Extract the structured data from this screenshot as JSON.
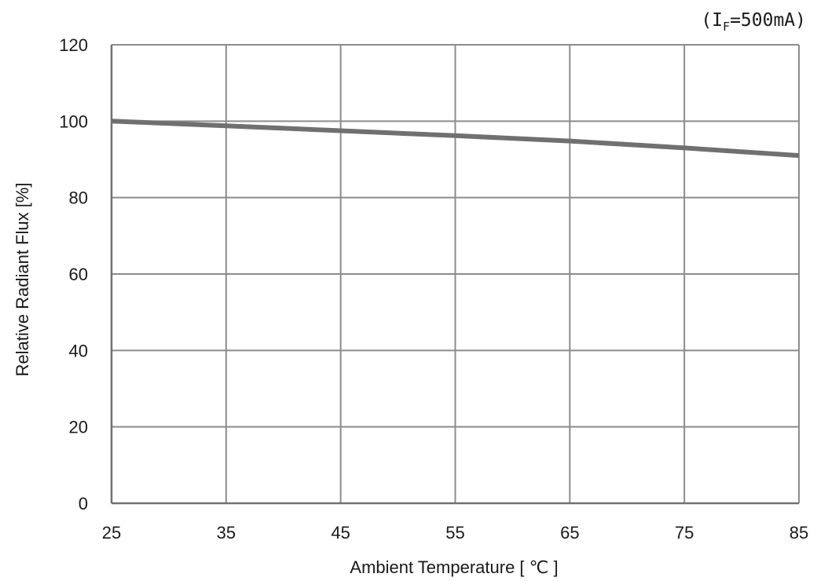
{
  "chart_data": {
    "type": "line",
    "title": "",
    "annotation": {
      "prefix": "(I",
      "subscript": "F",
      "suffix": "=500mA)"
    },
    "xlabel": "Ambient Temperature [ ℃ ]",
    "ylabel": "Relative Radiant Flux [%]",
    "xlim": [
      25,
      85
    ],
    "ylim": [
      0,
      120
    ],
    "x_ticks": [
      25,
      35,
      45,
      55,
      65,
      75,
      85
    ],
    "y_ticks": [
      0,
      20,
      40,
      60,
      80,
      100,
      120
    ],
    "grid": true,
    "series": [
      {
        "x": [
          25,
          35,
          45,
          55,
          65,
          75,
          85
        ],
        "y": [
          100,
          98.8,
          97.5,
          96.2,
          94.8,
          93,
          91
        ]
      }
    ],
    "colors": {
      "line": "#707070",
      "grid": "#8c8c8c",
      "axis": "#707070"
    }
  }
}
